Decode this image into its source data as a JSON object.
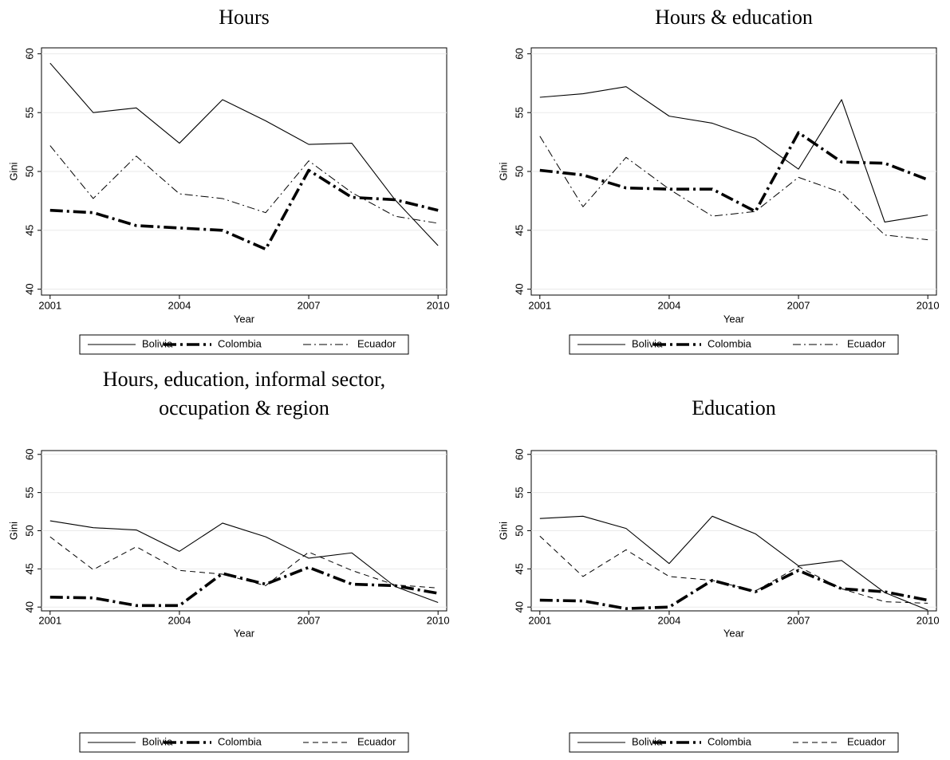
{
  "chart_data": [
    {
      "type": "line",
      "title": "Hours",
      "xlabel": "Year",
      "ylabel": "Gini",
      "x": [
        2001,
        2002,
        2003,
        2004,
        2005,
        2006,
        2007,
        2008,
        2009,
        2010
      ],
      "xlim": [
        2000.8,
        2010.2
      ],
      "xticks": [
        2001,
        2004,
        2007,
        2010
      ],
      "ylim": [
        39.5,
        60.5
      ],
      "yticks": [
        40,
        45,
        50,
        55,
        60
      ],
      "grid": true,
      "legend": "bottom",
      "series": [
        {
          "name": "Bolivia",
          "color": "#000000",
          "style": "solid",
          "values": [
            59.2,
            55.0,
            55.4,
            52.4,
            56.1,
            54.3,
            52.3,
            52.4,
            47.6,
            43.7
          ]
        },
        {
          "name": "Colombia",
          "color": "#000000",
          "style": "thick-dashdot",
          "values": [
            46.7,
            46.5,
            45.4,
            45.2,
            45.0,
            43.4,
            50.1,
            47.8,
            47.6,
            46.7
          ]
        },
        {
          "name": "Ecuador",
          "color": "#000000",
          "style": "dashdot",
          "values": [
            52.2,
            47.7,
            51.3,
            48.1,
            47.7,
            46.5,
            50.9,
            48.2,
            46.2,
            45.6
          ]
        }
      ]
    },
    {
      "type": "line",
      "title": "Hours & education",
      "xlabel": "Year",
      "ylabel": "Gini",
      "x": [
        2001,
        2002,
        2003,
        2004,
        2005,
        2006,
        2007,
        2008,
        2009,
        2010
      ],
      "xlim": [
        2000.8,
        2010.2
      ],
      "xticks": [
        2001,
        2004,
        2007,
        2010
      ],
      "ylim": [
        39.5,
        60.5
      ],
      "yticks": [
        40,
        45,
        50,
        55,
        60
      ],
      "grid": true,
      "legend": "bottom",
      "series": [
        {
          "name": "Bolivia",
          "color": "#000000",
          "style": "solid",
          "values": [
            56.3,
            56.6,
            57.2,
            54.7,
            54.1,
            52.8,
            50.2,
            56.1,
            45.7,
            46.3
          ]
        },
        {
          "name": "Colombia",
          "color": "#000000",
          "style": "thick-dashdot",
          "values": [
            50.1,
            49.7,
            48.6,
            48.5,
            48.5,
            46.6,
            53.3,
            50.8,
            50.7,
            49.3
          ]
        },
        {
          "name": "Ecuador",
          "color": "#000000",
          "style": "dashdot",
          "values": [
            53.0,
            47.0,
            51.2,
            48.5,
            46.2,
            46.6,
            49.5,
            48.2,
            44.6,
            44.2
          ]
        }
      ]
    },
    {
      "type": "line",
      "title": "Hours, education, informal sector, occupation & region",
      "xlabel": "Year",
      "ylabel": "Gini",
      "x": [
        2001,
        2002,
        2003,
        2004,
        2005,
        2006,
        2007,
        2008,
        2009,
        2010
      ],
      "xlim": [
        2000.8,
        2010.2
      ],
      "xticks": [
        2001,
        2004,
        2007,
        2010
      ],
      "ylim": [
        39.5,
        60.5
      ],
      "yticks": [
        40,
        45,
        50,
        55,
        60
      ],
      "grid": true,
      "legend": "bottom",
      "series": [
        {
          "name": "Bolivia",
          "color": "#000000",
          "style": "solid",
          "values": [
            51.3,
            50.4,
            50.1,
            47.3,
            51.0,
            49.2,
            46.4,
            47.1,
            42.7,
            40.6
          ]
        },
        {
          "name": "Colombia",
          "color": "#000000",
          "style": "thick-dashdot",
          "values": [
            41.3,
            41.2,
            40.2,
            40.2,
            44.4,
            43.0,
            45.2,
            43.0,
            42.8,
            41.8
          ]
        },
        {
          "name": "Ecuador",
          "color": "#000000",
          "style": "dashed",
          "values": [
            49.2,
            44.9,
            47.9,
            44.8,
            44.3,
            42.8,
            47.2,
            44.8,
            42.9,
            42.5
          ]
        }
      ]
    },
    {
      "type": "line",
      "title": "Education",
      "xlabel": "Year",
      "ylabel": "Gini",
      "x": [
        2001,
        2002,
        2003,
        2004,
        2005,
        2006,
        2007,
        2008,
        2009,
        2010
      ],
      "xlim": [
        2000.8,
        2010.2
      ],
      "xticks": [
        2001,
        2004,
        2007,
        2010
      ],
      "ylim": [
        39.5,
        60.5
      ],
      "yticks": [
        40,
        45,
        50,
        55,
        60
      ],
      "grid": true,
      "legend": "bottom",
      "series": [
        {
          "name": "Bolivia",
          "color": "#000000",
          "style": "solid",
          "values": [
            51.6,
            51.9,
            50.3,
            45.7,
            51.9,
            49.6,
            45.4,
            46.1,
            41.9,
            39.6
          ]
        },
        {
          "name": "Colombia",
          "color": "#000000",
          "style": "thick-dashdot",
          "values": [
            40.9,
            40.8,
            39.8,
            40.0,
            43.5,
            42.0,
            44.8,
            42.4,
            42.0,
            40.9
          ]
        },
        {
          "name": "Ecuador",
          "color": "#000000",
          "style": "dashed",
          "values": [
            49.3,
            44.0,
            47.5,
            44.0,
            43.5,
            42.1,
            45.3,
            42.4,
            40.7,
            40.5
          ]
        }
      ]
    }
  ]
}
